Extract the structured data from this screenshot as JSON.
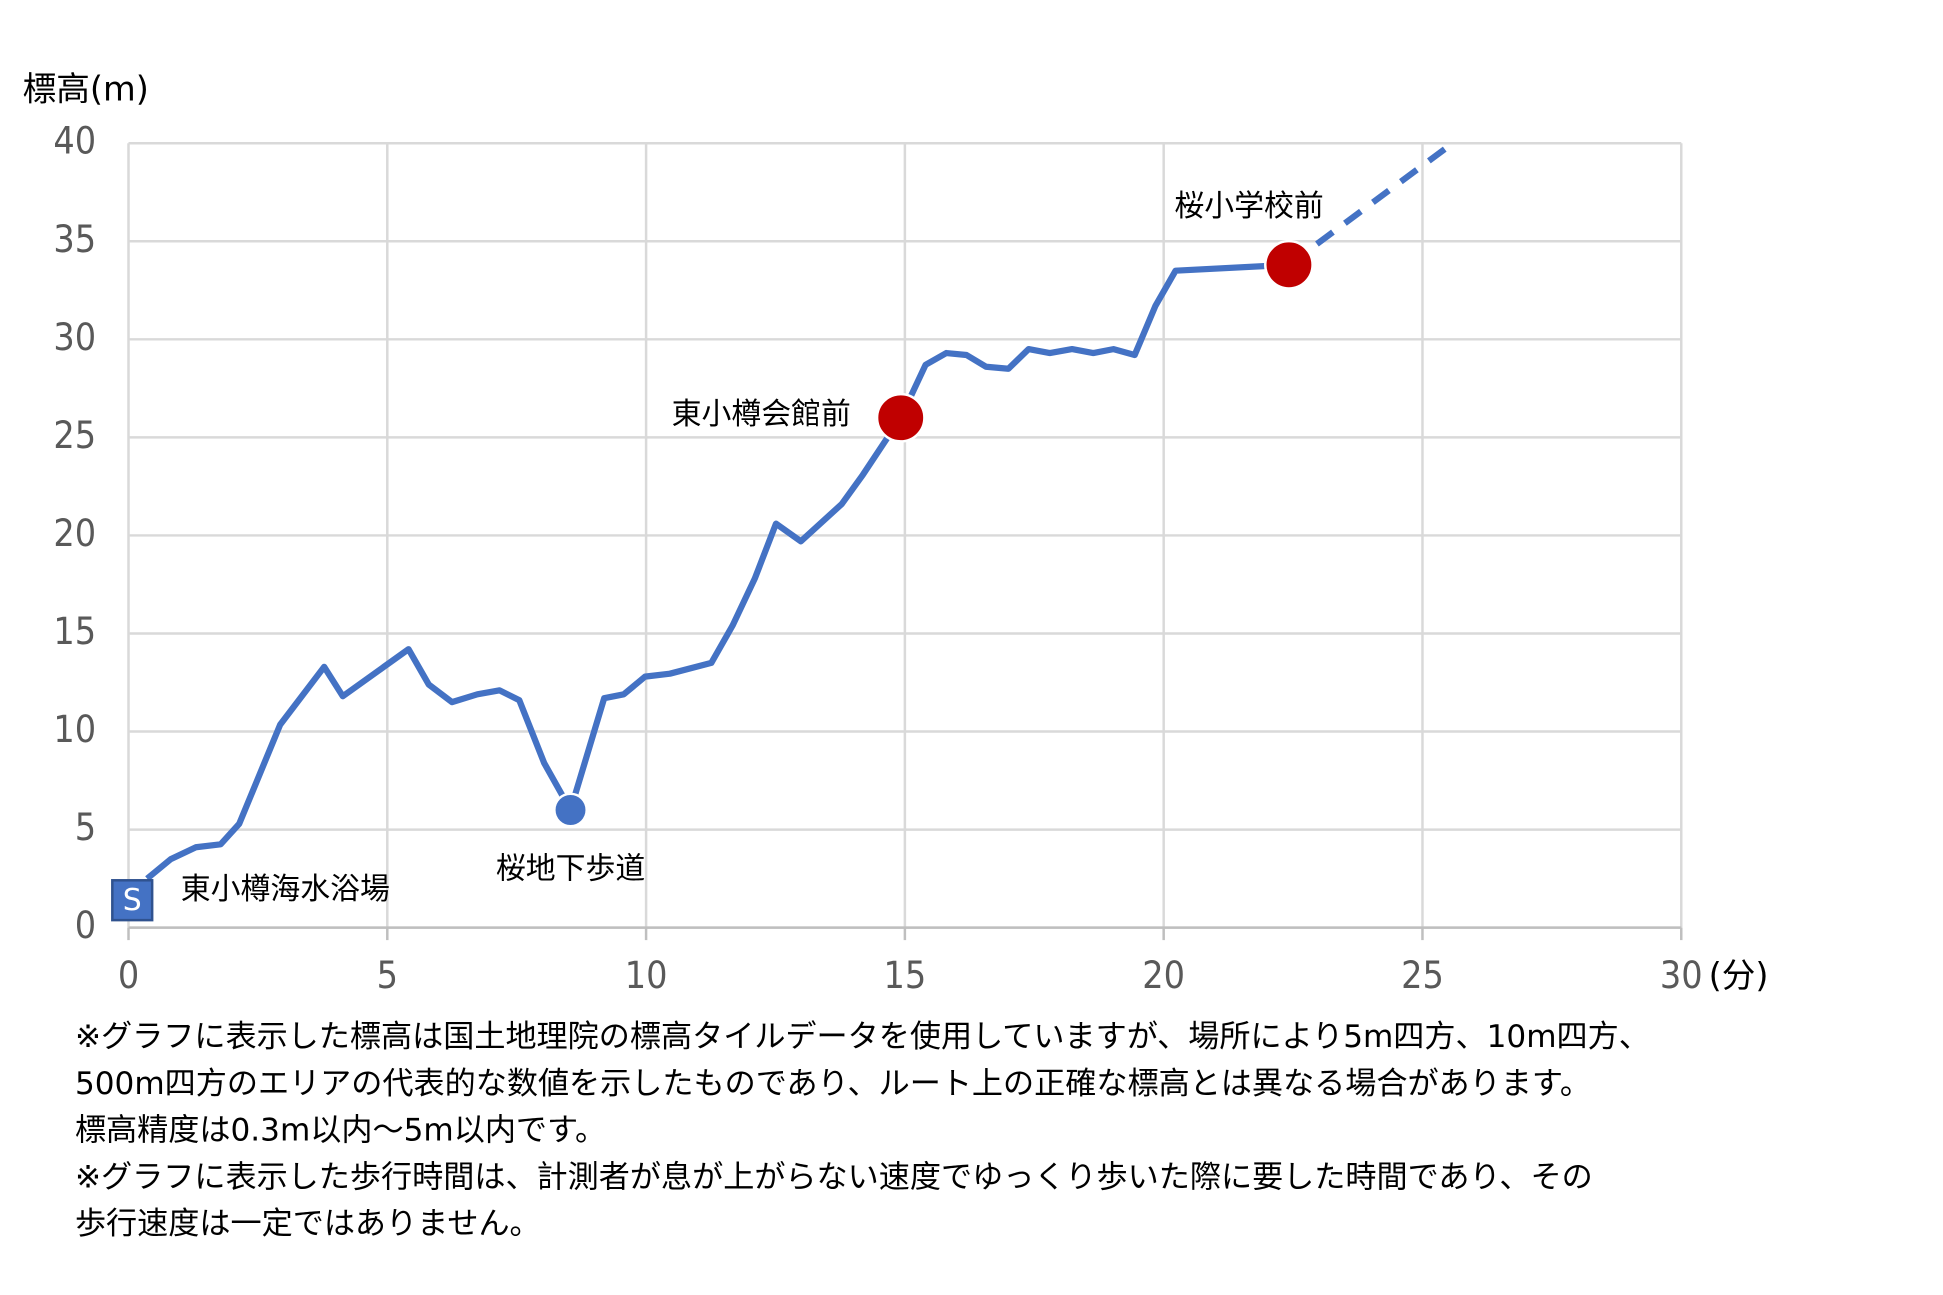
{
  "chart_data": {
    "type": "line",
    "y_label": "標高(m)",
    "x_label": "(分)",
    "xlim": [
      0,
      30
    ],
    "xticks": [
      0,
      5,
      10,
      15,
      20,
      25,
      30
    ],
    "ylim": [
      0,
      40
    ],
    "yticks": [
      0,
      5,
      10,
      15,
      20,
      25,
      30,
      35,
      40
    ],
    "grid": true,
    "series": [
      {
        "color": "#4472c4",
        "style": "solid",
        "x": [
          0.36,
          0.82,
          1.3,
          1.78,
          2.14,
          2.93,
          3.78,
          4.14,
          5.41,
          5.8,
          6.25,
          6.74,
          7.17,
          7.55,
          8.03,
          8.54,
          9.19,
          9.57,
          9.98,
          10.46,
          11.26,
          11.67,
          12.1,
          12.51,
          12.99,
          13.78,
          14.19,
          14.92,
          15.4,
          15.8,
          16.19,
          16.57,
          17.0,
          17.39,
          17.8,
          18.23,
          18.64,
          19.03,
          19.44,
          19.84,
          20.23,
          22.42
        ],
        "values": [
          2.5,
          3.5,
          4.1,
          4.25,
          5.3,
          10.35,
          13.3,
          11.8,
          14.2,
          12.4,
          11.5,
          11.9,
          12.1,
          11.6,
          8.4,
          6.0,
          11.7,
          11.9,
          12.8,
          12.95,
          13.5,
          15.4,
          17.8,
          20.6,
          19.7,
          21.6,
          23.1,
          26.0,
          28.7,
          29.3,
          29.2,
          28.6,
          28.5,
          29.5,
          29.3,
          29.5,
          29.3,
          29.5,
          29.2,
          31.7,
          33.5,
          33.8
        ]
      },
      {
        "color": "#4472c4",
        "style": "dashed",
        "x": [
          22.42,
          25.43
        ],
        "values": [
          33.8,
          39.7
        ]
      }
    ],
    "points": [
      {
        "label": "東小樽海水浴場",
        "marker": "S",
        "shape": "square",
        "color": "#4472c4",
        "x": 0,
        "y": 1.4
      },
      {
        "label": "桜地下歩道",
        "shape": "circle",
        "color": "#4472c4",
        "x": 8.54,
        "y": 6.0
      },
      {
        "label": "東小樽会館前",
        "shape": "circle",
        "color": "#c00000",
        "x": 14.92,
        "y": 26.0
      },
      {
        "label": "桜小学校前",
        "shape": "circle",
        "color": "#c00000",
        "x": 22.42,
        "y": 33.8
      }
    ],
    "notes": [
      "※グラフに表示した標高は国土地理院の標高タイルデータを使用していますが、場所により5m四方、10m四方、",
      "500m四方のエリアの代表的な数値を示したものであり、ルート上の正確な標高とは異なる場合があります。",
      "標高精度は0.3m以内～5m以内です。",
      "※グラフに表示した歩行時間は、計測者が息が上がらない速度でゆっくり歩いた際に要した時間であり、その",
      "歩行速度は一定ではありません。"
    ]
  }
}
